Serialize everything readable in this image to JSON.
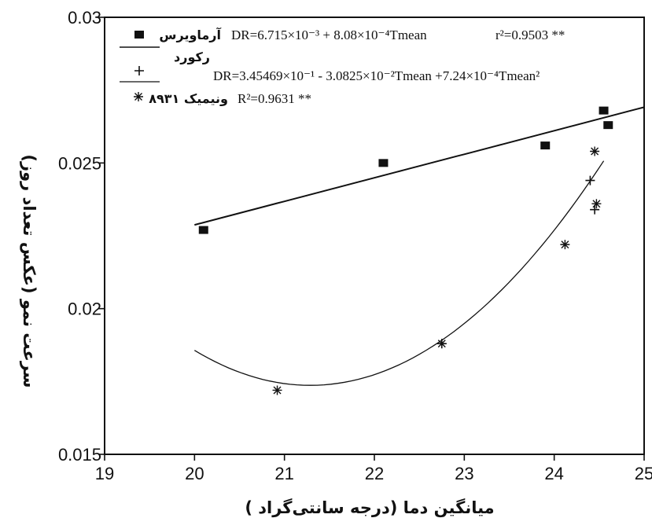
{
  "chart_data": {
    "type": "scatter",
    "xlabel": "میانگین دما (درجه سانتی‌گراد )",
    "ylabel": "سرعت نمو (عکس تعداد روز)",
    "xlim": [
      19,
      25
    ],
    "ylim": [
      0.015,
      0.03
    ],
    "x_ticks": [
      "19",
      "20",
      "21",
      "22",
      "23",
      "24",
      "25"
    ],
    "y_ticks": [
      "0.015",
      "0.02",
      "0.025",
      "0.03"
    ],
    "legend_position": "top-left",
    "series": [
      {
        "name": "آرماویرس",
        "marker": "square",
        "x": [
          20.1,
          22.1,
          23.9,
          24.55,
          24.6
        ],
        "y": [
          0.0227,
          0.025,
          0.0256,
          0.0268,
          0.0263
        ],
        "equation": "DR=6.715×10⁻³ + 8.08×10⁻⁴Tmean",
        "r2": "r²=0.9503 **",
        "fit": {
          "type": "linear",
          "intercept": 0.006715,
          "slope": 0.000808,
          "x_range": [
            20,
            25
          ]
        }
      },
      {
        "name": "رکورد",
        "marker": "plus",
        "x": [
          22.75,
          24.4,
          24.45
        ],
        "y": [
          0.0188,
          0.0244,
          0.0234
        ],
        "equation": "DR=3.45469×10⁻¹ - 3.0825×10⁻²Tmean +7.24×10⁻⁴Tmean²",
        "r2": "",
        "fit": {
          "type": "quadratic",
          "a": 0.345469,
          "b": -0.030825,
          "c": 0.000724,
          "x_range": [
            20,
            24.55
          ]
        }
      },
      {
        "name": "۸۹۳۱ ونیمیک",
        "marker": "asterisk",
        "x": [
          20.92,
          22.75,
          24.12,
          24.45,
          24.47
        ],
        "y": [
          0.0172,
          0.0188,
          0.0222,
          0.0254,
          0.0236
        ],
        "equation": "",
        "r2": "R²=0.9631 **",
        "fit": null
      }
    ]
  },
  "colors": {
    "ink": "#111111",
    "background": "#ffffff"
  }
}
